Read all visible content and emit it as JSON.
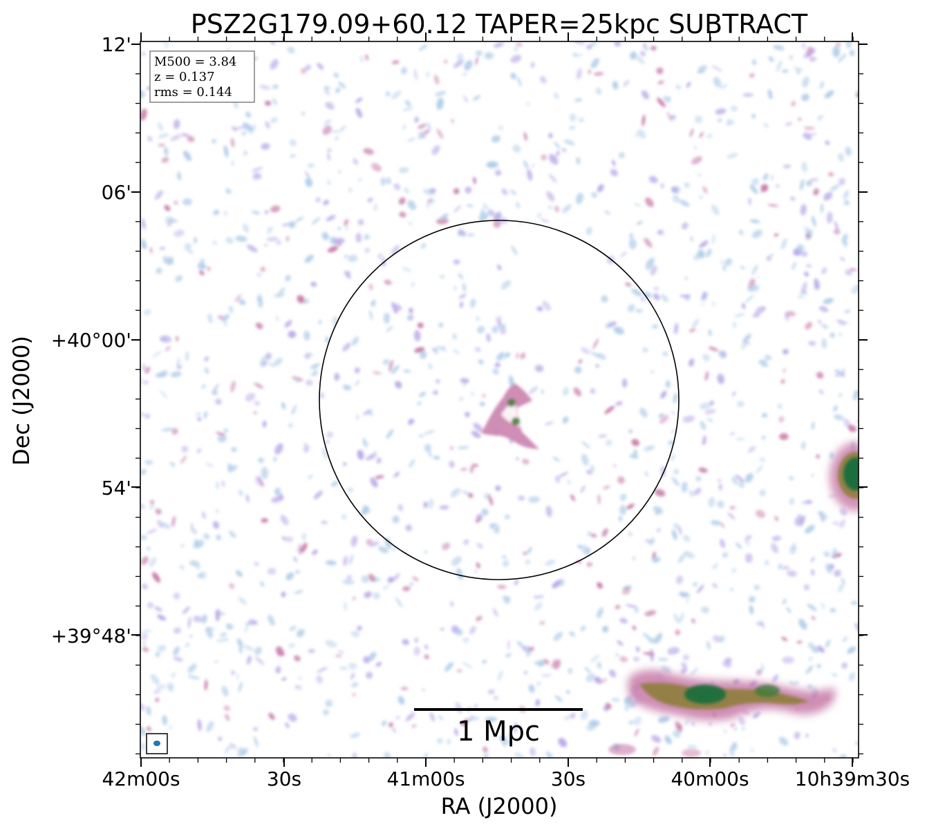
{
  "title": "PSZ2G179.09+60.12 TAPER=25kpc SUBTRACT",
  "xlabel": "RA (J2000)",
  "ylabel": "Dec (J2000)",
  "x_ticks": [
    "42m00s",
    "30s",
    "41m00s",
    "30s",
    "40m00s",
    "10h39m30s"
  ],
  "y_ticks": [
    "12'",
    "06'",
    "+40°00'",
    "54'",
    "+39°48'"
  ],
  "info": {
    "m500": "M500 = 3.84",
    "z": "z = 0.137",
    "rms": "rms = 0.144"
  },
  "scalebar_label": "1 Mpc",
  "colors": {
    "low_emission": "#aecde8",
    "mid_emission": "#b7a6e8",
    "high_emission": "#c77aa8",
    "peak_emission": "#1e6e3c",
    "beam": "#1f77b4"
  }
}
